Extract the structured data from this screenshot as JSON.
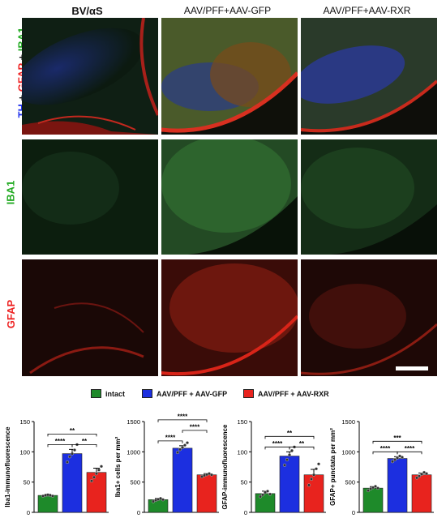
{
  "columns": [
    "BV/αS",
    "AAV/PFF+AAV-GFP",
    "AAV/PFF+AAV-RXR"
  ],
  "row_labels": {
    "merge": [
      {
        "text": "TH",
        "color": "#2233ee"
      },
      {
        "text": " + ",
        "color": "#111111"
      },
      {
        "text": "GFAP",
        "color": "#ee2222"
      },
      {
        "text": " + ",
        "color": "#111111"
      },
      {
        "text": "IBA1",
        "color": "#22aa22"
      }
    ],
    "iba1": {
      "text": "IBA1",
      "color": "#22aa22"
    },
    "gfap": {
      "text": "GFAP",
      "color": "#ee2222"
    }
  },
  "legend": [
    {
      "label": "intact",
      "color": "#1e8a2a"
    },
    {
      "label": "AAV/PFF + AAV-GFP",
      "color": "#1c2fe0"
    },
    {
      "label": "AAV/PFF + AAV-RXR",
      "color": "#e8231e"
    }
  ],
  "chart_data": [
    {
      "type": "bar",
      "categories": [
        "intact",
        "AAV/PFF + AAV-GFP",
        "AAV/PFF + AAV-RXR"
      ],
      "values": [
        28,
        97,
        66
      ],
      "errors": [
        2,
        7,
        7
      ],
      "points": [
        [
          27,
          28,
          29,
          28,
          27
        ],
        [
          83,
          92,
          97,
          103,
          112
        ],
        [
          52,
          58,
          64,
          70,
          76
        ]
      ],
      "ylabel": "Iba1-immunofluorescence",
      "ylim": [
        0,
        150
      ],
      "yticks": [
        "0",
        "50",
        "100",
        "150"
      ],
      "significance": [
        {
          "from": 0,
          "to": 1,
          "label": "****",
          "level": 1
        },
        {
          "from": 1,
          "to": 2,
          "label": "**",
          "level": 1
        },
        {
          "from": 0,
          "to": 2,
          "label": "**",
          "level": 2
        }
      ]
    },
    {
      "type": "bar",
      "categories": [
        "intact",
        "AAV/PFF + AAV-GFP",
        "AAV/PFF + AAV-RXR"
      ],
      "values": [
        210,
        1060,
        620
      ],
      "errors": [
        20,
        40,
        20
      ],
      "points": [
        [
          180,
          200,
          215,
          230,
          210
        ],
        [
          990,
          1040,
          1070,
          1110,
          1150
        ],
        [
          590,
          610,
          625,
          640,
          620
        ]
      ],
      "ylabel": "Iba1+ cells per mm²",
      "ylim": [
        0,
        1500
      ],
      "yticks": [
        "0",
        "500",
        "1000",
        "1500"
      ],
      "significance": [
        {
          "from": 0,
          "to": 1,
          "label": "****",
          "level": 1
        },
        {
          "from": 1,
          "to": 2,
          "label": "****",
          "level": 2
        },
        {
          "from": 0,
          "to": 2,
          "label": "****",
          "level": 3
        }
      ]
    },
    {
      "type": "bar",
      "categories": [
        "intact",
        "AAV/PFF + AAV-GFP",
        "AAV/PFF + AAV-RXR"
      ],
      "values": [
        31,
        93,
        62
      ],
      "errors": [
        4,
        7,
        9
      ],
      "points": [
        [
          26,
          29,
          33,
          35,
          30
        ],
        [
          78,
          87,
          95,
          102,
          108
        ],
        [
          45,
          55,
          62,
          72,
          80
        ]
      ],
      "ylabel": "GFAP-immunofluorescence",
      "ylim": [
        0,
        150
      ],
      "yticks": [
        "0",
        "50",
        "100",
        "150"
      ],
      "significance": [
        {
          "from": 0,
          "to": 1,
          "label": "****",
          "level": 1
        },
        {
          "from": 1,
          "to": 2,
          "label": "**",
          "level": 1
        },
        {
          "from": 0,
          "to": 2,
          "label": "**",
          "level": 2
        }
      ]
    },
    {
      "type": "bar",
      "categories": [
        "intact",
        "AAV/PFF + AAV-GFP",
        "AAV/PFF + AAV-RXR"
      ],
      "values": [
        400,
        890,
        620
      ],
      "errors": [
        25,
        30,
        30
      ],
      "points": [
        [
          360,
          390,
          410,
          430,
          400
        ],
        [
          840,
          870,
          900,
          930,
          910
        ],
        [
          570,
          600,
          630,
          660,
          640
        ]
      ],
      "ylabel": "GFAP+ punctata per mm²",
      "ylim": [
        0,
        1500
      ],
      "yticks": [
        "0",
        "500",
        "1000",
        "1500"
      ],
      "significance": [
        {
          "from": 0,
          "to": 1,
          "label": "****",
          "level": 1
        },
        {
          "from": 1,
          "to": 2,
          "label": "****",
          "level": 1
        },
        {
          "from": 0,
          "to": 2,
          "label": "***",
          "level": 2
        }
      ]
    }
  ]
}
